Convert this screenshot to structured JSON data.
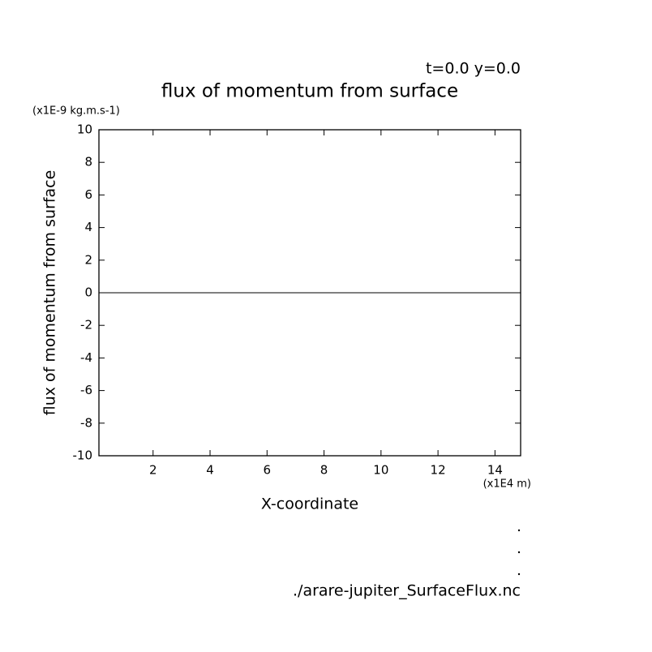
{
  "chart_data": {
    "type": "line",
    "title": "flux of momentum from surface",
    "subtitle": "t=0.0 y=0.0",
    "y_unit": "(x1E-9 kg.m.s-1)",
    "x_unit": "(x1E4 m)",
    "xlabel": "X-coordinate",
    "ylabel": "flux of momentum from surface",
    "footer": "./arare-jupiter_SurfaceFlux.nc",
    "x": [
      0.1,
      14.9
    ],
    "series": [
      {
        "name": "flux of momentum from surface",
        "color": "#000000",
        "values": [
          0,
          0
        ]
      }
    ],
    "xlim": [
      0.1,
      14.9
    ],
    "xticks": [
      2,
      4,
      6,
      8,
      10,
      12,
      14
    ],
    "ylim": [
      -10,
      10
    ],
    "yticks": [
      -10,
      -8,
      -6,
      -4,
      -2,
      0,
      2,
      4,
      6,
      8,
      10
    ],
    "grid": false
  }
}
